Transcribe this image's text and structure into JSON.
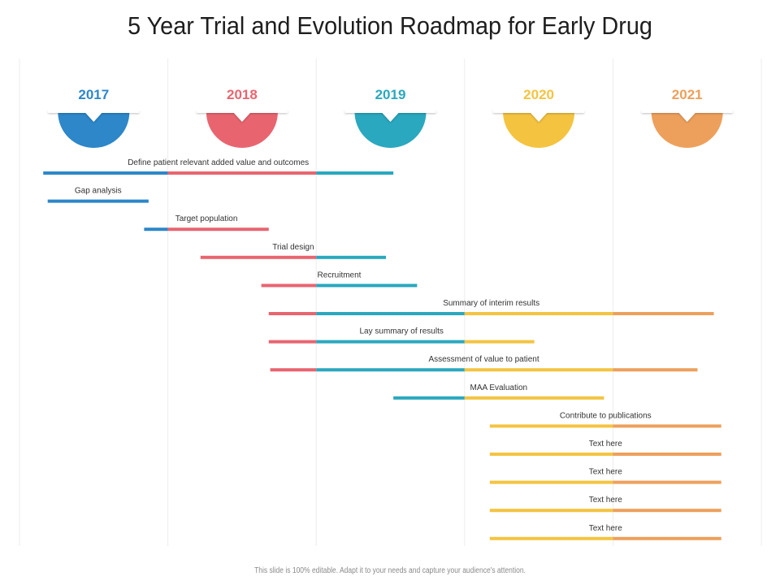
{
  "title": "5 Year Trial and Evolution Roadmap for Early Drug",
  "footer": "This slide is 100% editable. Adapt it to your needs and capture your audience's attention.",
  "chart_data": {
    "type": "gantt",
    "x_unit": "year",
    "x_range": [
      2017,
      2022
    ],
    "years": [
      {
        "label": "2017",
        "color": "#2D87C9"
      },
      {
        "label": "2018",
        "color": "#E86570"
      },
      {
        "label": "2019",
        "color": "#2AA8BF"
      },
      {
        "label": "2020",
        "color": "#F4C441"
      },
      {
        "label": "2021",
        "color": "#EDA05C"
      }
    ],
    "tasks": [
      {
        "label": "Define patient relevant added value and outcomes",
        "start": 2017.16,
        "end": 2019.52
      },
      {
        "label": "Gap analysis",
        "start": 2017.19,
        "end": 2017.87
      },
      {
        "label": "Target population",
        "start": 2017.84,
        "end": 2018.68
      },
      {
        "label": "Trial design",
        "start": 2018.22,
        "end": 2019.47
      },
      {
        "label": "Recruitment",
        "start": 2018.63,
        "end": 2019.68
      },
      {
        "label": "Summary of interim results",
        "start": 2018.68,
        "end": 2021.68
      },
      {
        "label": "Lay summary of results",
        "start": 2018.68,
        "end": 2020.47
      },
      {
        "label": "Assessment of value to patient",
        "start": 2018.69,
        "end": 2021.57
      },
      {
        "label": "MAA Evaluation",
        "start": 2019.52,
        "end": 2020.94
      },
      {
        "label": "Contribute to publications",
        "start": 2020.17,
        "end": 2021.73
      },
      {
        "label": "Text here",
        "start": 2020.17,
        "end": 2021.73
      },
      {
        "label": "Text here",
        "start": 2020.17,
        "end": 2021.73
      },
      {
        "label": "Text here",
        "start": 2020.17,
        "end": 2021.73
      },
      {
        "label": "Text here",
        "start": 2020.17,
        "end": 2021.73
      }
    ]
  }
}
